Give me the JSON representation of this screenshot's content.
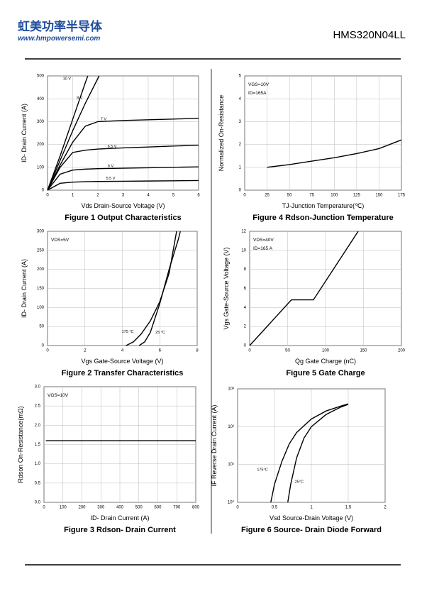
{
  "header": {
    "company": "虹美功率半导体",
    "website": "www.hmpowersemi.com",
    "part_number": "HMS320N04LL"
  },
  "chart_data": [
    {
      "type": "line",
      "title": "Figure 1 Output Characteristics",
      "x_label": "Vds Drain-Source Voltage (V)",
      "y_label": "ID- Drain Current (A)",
      "xlim": [
        0,
        6
      ],
      "ylim": [
        0,
        500
      ],
      "xticks": [
        0,
        1,
        2,
        3,
        4,
        5,
        6
      ],
      "yticks": [
        0,
        100,
        200,
        300,
        400,
        500
      ],
      "grid": true,
      "annotations": [],
      "series": [
        {
          "name": "10 V",
          "color": "#000000",
          "x": [
            0,
            0.5,
            1,
            1.5,
            1.6
          ],
          "values": [
            0,
            150,
            310,
            470,
            500
          ]
        },
        {
          "name": "8 V",
          "color": "#000000",
          "x": [
            0,
            0.5,
            1,
            1.5,
            2.05
          ],
          "values": [
            0,
            130,
            260,
            380,
            500
          ]
        },
        {
          "name": "7 V",
          "color": "#000000",
          "x": [
            0,
            0.5,
            1,
            1.5,
            2,
            3,
            4,
            5,
            6
          ],
          "values": [
            0,
            110,
            210,
            280,
            300,
            305,
            308,
            311,
            315
          ]
        },
        {
          "name": "6.5 V",
          "color": "#000000",
          "x": [
            0,
            0.5,
            1,
            1.5,
            2,
            3,
            4,
            5,
            6
          ],
          "values": [
            0,
            100,
            165,
            175,
            180,
            185,
            189,
            193,
            197
          ]
        },
        {
          "name": "6 V",
          "color": "#000000",
          "x": [
            0,
            0.5,
            1,
            1.5,
            2,
            3,
            4,
            5,
            6
          ],
          "values": [
            0,
            70,
            88,
            92,
            94,
            96,
            98,
            100,
            102
          ]
        },
        {
          "name": "5.5 V",
          "color": "#000000",
          "x": [
            0,
            0.5,
            1,
            1.5,
            2,
            3,
            4,
            5,
            6
          ],
          "values": [
            0,
            30,
            35,
            37,
            38,
            39,
            40,
            41,
            42
          ]
        }
      ]
    },
    {
      "type": "line",
      "title": "Figure 2 Transfer Characteristics",
      "x_label": "Vgs Gate-Source Voltage (V)",
      "y_label": "ID- Drain Current (A)",
      "xlim": [
        0,
        8
      ],
      "ylim": [
        0,
        300
      ],
      "xticks": [
        0,
        2,
        4,
        6,
        8
      ],
      "yticks": [
        0,
        50,
        100,
        150,
        200,
        250,
        300
      ],
      "grid": true,
      "annotations": [
        "VDS=5V"
      ],
      "series": [
        {
          "name": "175 °C",
          "color": "#000000",
          "x": [
            4.2,
            4.6,
            5,
            5.5,
            6,
            6.5,
            6.9
          ],
          "values": [
            0,
            10,
            30,
            65,
            115,
            190,
            300
          ]
        },
        {
          "name": "25 °C",
          "color": "#000000",
          "x": [
            4.9,
            5.2,
            5.5,
            6,
            6.5,
            7,
            7.1
          ],
          "values": [
            0,
            10,
            35,
            110,
            200,
            280,
            300
          ]
        }
      ]
    },
    {
      "type": "line",
      "title": "Figure 3 Rdson- Drain Current",
      "x_label": "ID- Drain Current (A)",
      "y_label": "Rdson On-Resistance(mΩ)",
      "xlim": [
        0,
        800
      ],
      "ylim": [
        0,
        3
      ],
      "xticks": [
        0,
        100,
        200,
        300,
        400,
        500,
        600,
        700,
        800
      ],
      "yticks": [
        {
          "value": 0,
          "label": "0.0"
        },
        {
          "value": 0.5,
          "label": "0.5"
        },
        {
          "value": 1,
          "label": "1.0"
        },
        {
          "value": 1.5,
          "label": "1.5"
        },
        {
          "value": 2,
          "label": "2.0"
        },
        {
          "value": 2.5,
          "label": "2.5"
        },
        {
          "value": 3,
          "label": "3.0"
        }
      ],
      "grid": true,
      "annotations": [
        "VGS=10V"
      ],
      "series": [
        {
          "color": "#000000",
          "x": [
            10,
            800
          ],
          "values": [
            1.6,
            1.6
          ]
        }
      ]
    },
    {
      "type": "line",
      "title": "Figure 4 Rdson-Junction Temperature",
      "x_label": "TJ-Junction Temperature(℃)",
      "y_label": "Normalized On-Resistance",
      "xlim": [
        0,
        175
      ],
      "ylim": [
        0,
        5
      ],
      "xticks": [
        0,
        25,
        50,
        75,
        100,
        125,
        150,
        175
      ],
      "yticks": [
        0,
        1,
        2,
        3,
        4,
        5
      ],
      "grid": true,
      "annotations": [
        "VGS=10V",
        "ID=165A"
      ],
      "series": [
        {
          "color": "#000000",
          "x": [
            25,
            50,
            75,
            100,
            125,
            150,
            175
          ],
          "values": [
            1.0,
            1.12,
            1.27,
            1.42,
            1.6,
            1.82,
            2.2
          ]
        }
      ]
    },
    {
      "type": "line",
      "title": "Figure 5 Gate Charge",
      "x_label": "Qg Gate Charge (nC)",
      "y_label": "Vgs Gate-Source Voltage (V)",
      "xlim": [
        0,
        200
      ],
      "ylim": [
        0,
        12
      ],
      "xticks": [
        0,
        50,
        100,
        150,
        200
      ],
      "yticks": [
        0,
        2,
        4,
        6,
        8,
        10,
        12
      ],
      "grid": true,
      "annotations": [
        "VDS=40V",
        "ID=165 A"
      ],
      "series": [
        {
          "color": "#000000",
          "x": [
            0,
            55,
            84,
            143
          ],
          "values": [
            0,
            4.8,
            4.8,
            12
          ]
        }
      ]
    },
    {
      "type": "line",
      "title": "Figure 6 Source- Drain Diode Forward",
      "x_label": "Vsd Source-Drain Voltage (V)",
      "y_label": "IF Reverse Drain Current (A)",
      "xlim": [
        0,
        2
      ],
      "ylim": [
        1,
        1000
      ],
      "yscale": "log",
      "xticks": [
        0,
        0.5,
        1,
        1.5,
        2
      ],
      "yticks": [
        {
          "value": 1,
          "label": "10⁰"
        },
        {
          "value": 10,
          "label": "10¹"
        },
        {
          "value": 100,
          "label": "10²"
        },
        {
          "value": 1000,
          "label": "10³"
        }
      ],
      "grid": true,
      "annotations": [],
      "series": [
        {
          "name": "175°C",
          "color": "#000000",
          "x": [
            0.45,
            0.5,
            0.6,
            0.7,
            0.8,
            1.0,
            1.2,
            1.4,
            1.5
          ],
          "values": [
            1,
            3,
            12,
            35,
            70,
            160,
            260,
            350,
            400
          ]
        },
        {
          "name": "25°C",
          "color": "#000000",
          "x": [
            0.68,
            0.72,
            0.8,
            0.9,
            1.0,
            1.2,
            1.4,
            1.5
          ],
          "values": [
            1,
            3,
            15,
            50,
            100,
            210,
            330,
            390
          ]
        }
      ]
    }
  ]
}
